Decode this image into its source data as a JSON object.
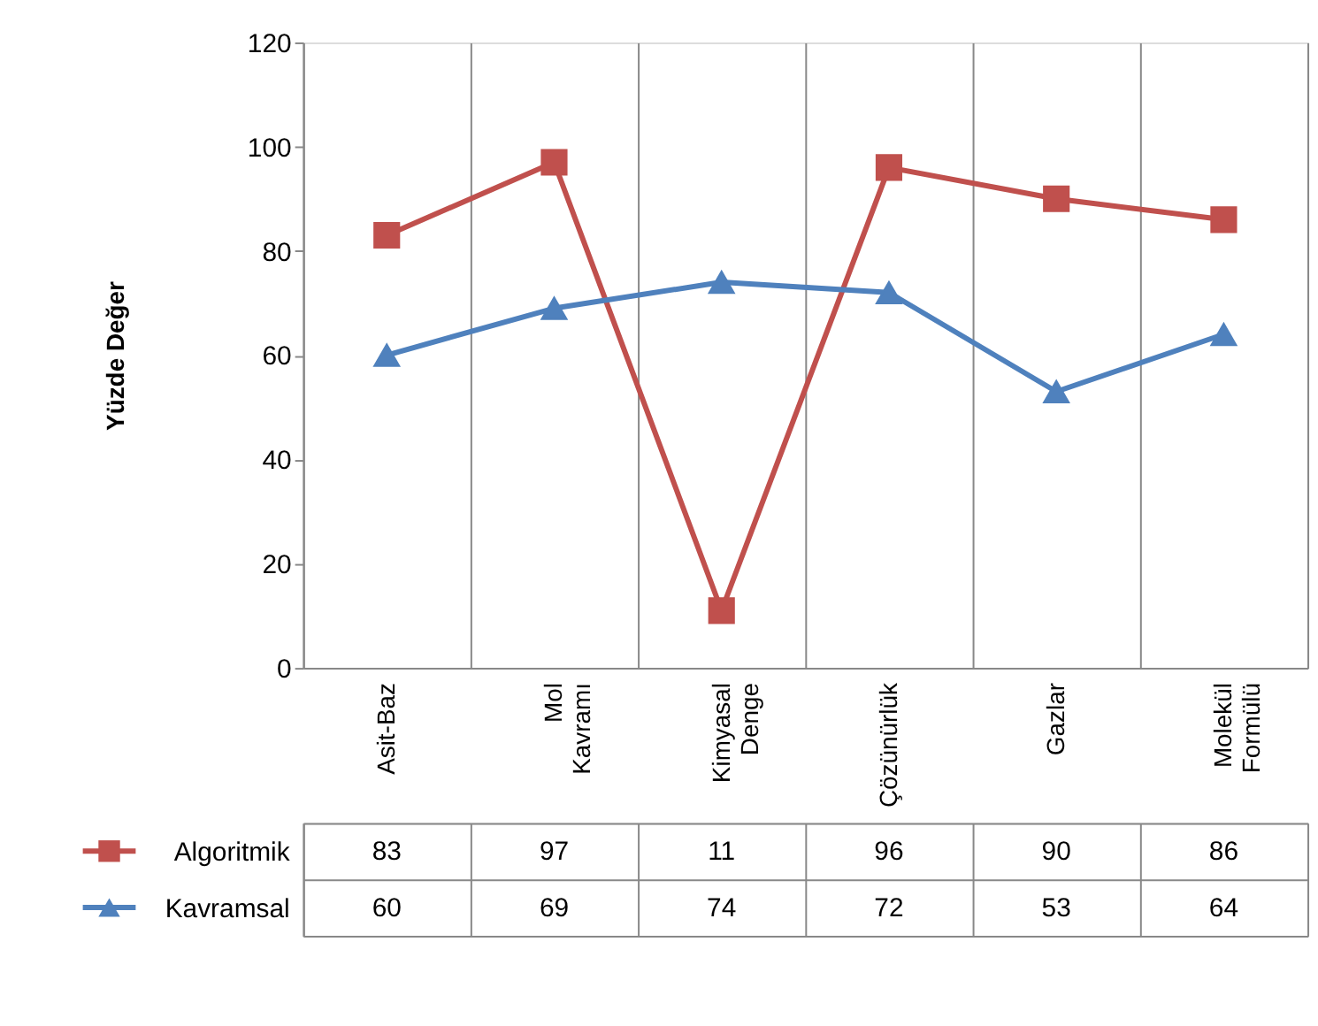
{
  "chart_data": {
    "type": "line",
    "ylabel": "Yüzde Değer",
    "categories": [
      "Asit-Baz",
      "Mol Kavramı",
      "Kimyasal Denge",
      "Çözünürlük",
      "Gazlar",
      "Molekül Formülü"
    ],
    "series": [
      {
        "name": "Algoritmik",
        "color": "#c0504d",
        "marker": "square",
        "values": [
          83,
          97,
          11,
          96,
          90,
          86
        ]
      },
      {
        "name": "Kavramsal",
        "color": "#4f81bd",
        "marker": "triangle",
        "values": [
          60,
          69,
          74,
          72,
          53,
          64
        ]
      }
    ],
    "ylim": [
      0,
      120
    ],
    "yticks": [
      0,
      20,
      40,
      60,
      80,
      100,
      120
    ],
    "grid": "x",
    "data_labels": true,
    "legend": "bottom left"
  }
}
